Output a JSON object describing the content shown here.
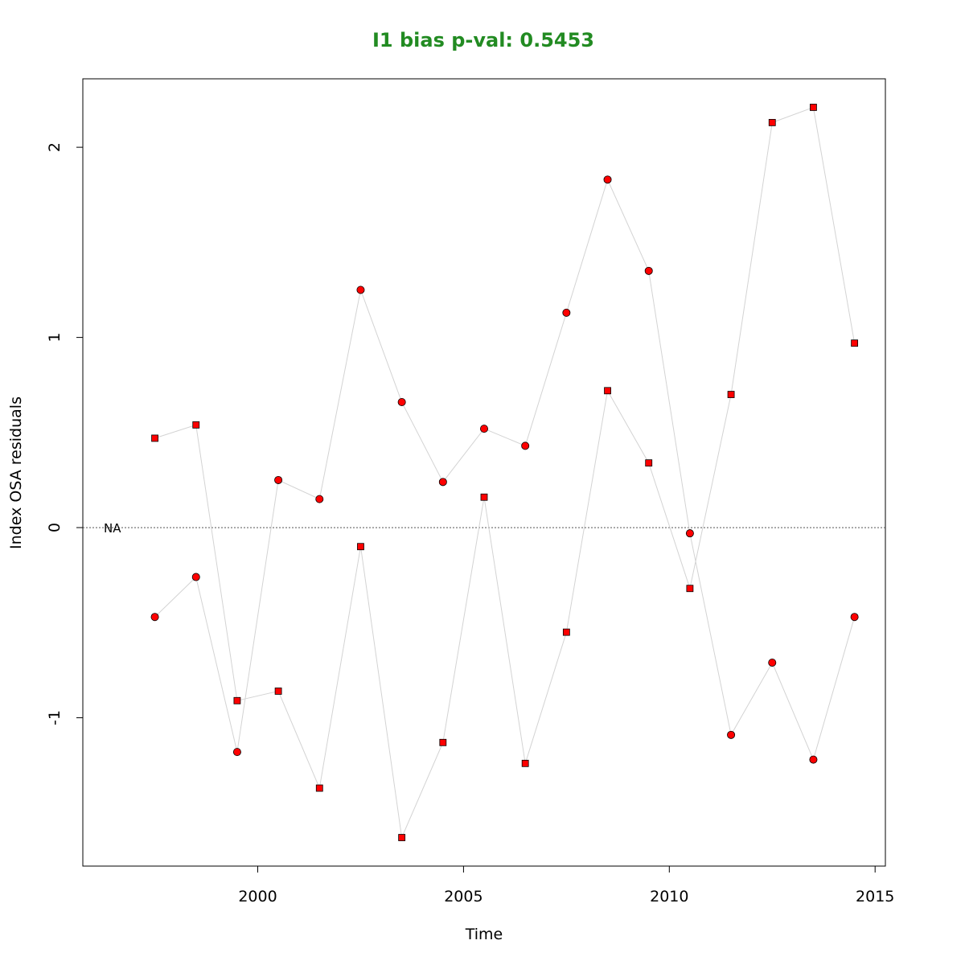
{
  "chart_data": {
    "type": "scatter",
    "title": "I1 bias p-val: 0.5453",
    "xlabel": "Time",
    "ylabel": "Index OSA residuals",
    "xlim": [
      1995.75,
      2015.25
    ],
    "ylim": [
      -1.78,
      2.36
    ],
    "x_ticks": [
      2000,
      2005,
      2010,
      2015
    ],
    "y_ticks": [
      -1,
      0,
      1,
      2
    ],
    "grid": false,
    "reference_line": {
      "y": 0,
      "style": "dotted"
    },
    "na_label": "NA",
    "series": [
      {
        "marker": "square",
        "color": "#FF0000",
        "points": [
          {
            "x": 1997.5,
            "y": 0.47
          },
          {
            "x": 1998.5,
            "y": 0.54
          },
          {
            "x": 1999.5,
            "y": -0.91
          },
          {
            "x": 2000.5,
            "y": -0.86
          },
          {
            "x": 2001.5,
            "y": -1.37
          },
          {
            "x": 2002.5,
            "y": -0.1
          },
          {
            "x": 2003.5,
            "y": -1.63
          },
          {
            "x": 2004.5,
            "y": -1.13
          },
          {
            "x": 2005.5,
            "y": 0.16
          },
          {
            "x": 2006.5,
            "y": -1.24
          },
          {
            "x": 2007.5,
            "y": -0.55
          },
          {
            "x": 2008.5,
            "y": 0.72
          },
          {
            "x": 2009.5,
            "y": 0.34
          },
          {
            "x": 2010.5,
            "y": -0.32
          },
          {
            "x": 2011.5,
            "y": 0.7
          },
          {
            "x": 2012.5,
            "y": 2.13
          },
          {
            "x": 2013.5,
            "y": 2.21
          },
          {
            "x": 2014.5,
            "y": 0.97
          }
        ]
      },
      {
        "marker": "circle",
        "color": "#FF0000",
        "points": [
          {
            "x": 1997.5,
            "y": -0.47
          },
          {
            "x": 1998.5,
            "y": -0.26
          },
          {
            "x": 1999.5,
            "y": -1.18
          },
          {
            "x": 2000.5,
            "y": 0.25
          },
          {
            "x": 2001.5,
            "y": 0.15
          },
          {
            "x": 2002.5,
            "y": 1.25
          },
          {
            "x": 2003.5,
            "y": 0.66
          },
          {
            "x": 2004.5,
            "y": 0.24
          },
          {
            "x": 2005.5,
            "y": 0.52
          },
          {
            "x": 2006.5,
            "y": 0.43
          },
          {
            "x": 2007.5,
            "y": 1.13
          },
          {
            "x": 2008.5,
            "y": 1.83
          },
          {
            "x": 2009.5,
            "y": 1.35
          },
          {
            "x": 2010.5,
            "y": -0.03
          },
          {
            "x": 2011.5,
            "y": -1.09
          },
          {
            "x": 2012.5,
            "y": -0.71
          },
          {
            "x": 2013.5,
            "y": -1.22
          },
          {
            "x": 2014.5,
            "y": -0.47
          }
        ]
      }
    ],
    "colors": {
      "title": "#228B22",
      "point_fill": "#FF0000",
      "point_stroke": "#000000",
      "connector": "#D3D3D3",
      "reference_line": "#555555"
    }
  }
}
